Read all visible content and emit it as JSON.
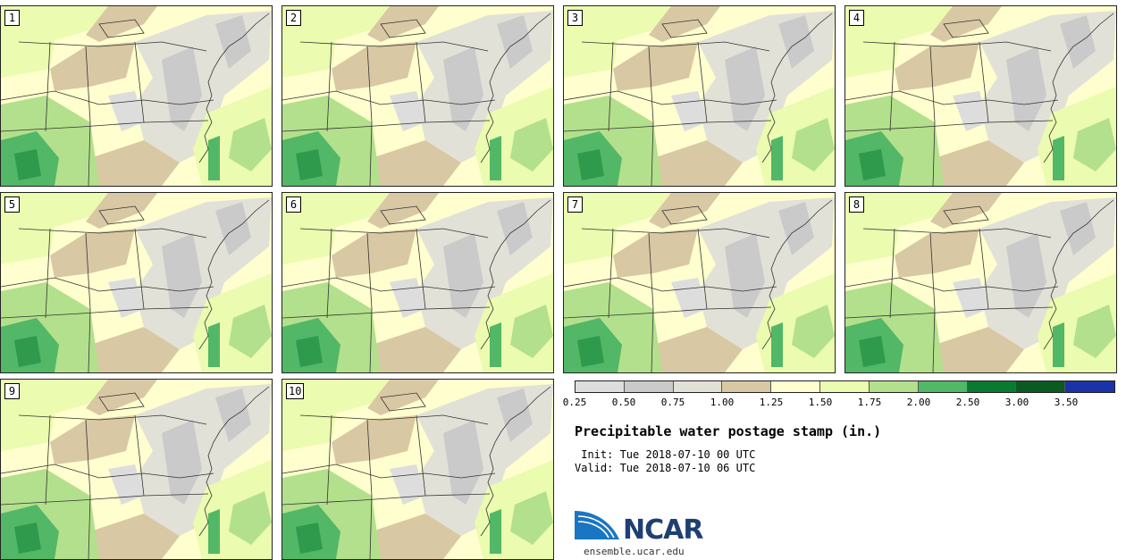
{
  "panels": [
    {
      "label": "1"
    },
    {
      "label": "2"
    },
    {
      "label": "3"
    },
    {
      "label": "4"
    },
    {
      "label": "5"
    },
    {
      "label": "6"
    },
    {
      "label": "7"
    },
    {
      "label": "8"
    },
    {
      "label": "9"
    },
    {
      "label": "10"
    }
  ],
  "colorbar": {
    "colors": [
      "#dddddd",
      "#cacaca",
      "#e2e1d8",
      "#d9c8a4",
      "#fefece",
      "#ebfbaf",
      "#b3e08c",
      "#52b766",
      "#0a7a32",
      "#0b5a24",
      "#1a34a8"
    ],
    "tick_labels": [
      "0.25",
      "0.50",
      "0.75",
      "1.00",
      "1.25",
      "1.50",
      "1.75",
      "2.00",
      "2.50",
      "3.00",
      "3.50"
    ]
  },
  "title": "Precipitable water postage stamp (in.)",
  "init_line": " Init: Tue 2018-07-10 00 UTC",
  "valid_line": "Valid: Tue 2018-07-10 06 UTC",
  "logo": {
    "text": "NCAR",
    "url": "ensemble.ucar.edu",
    "brand_color": "#1f3f73",
    "accent_color": "#1a76c2"
  }
}
